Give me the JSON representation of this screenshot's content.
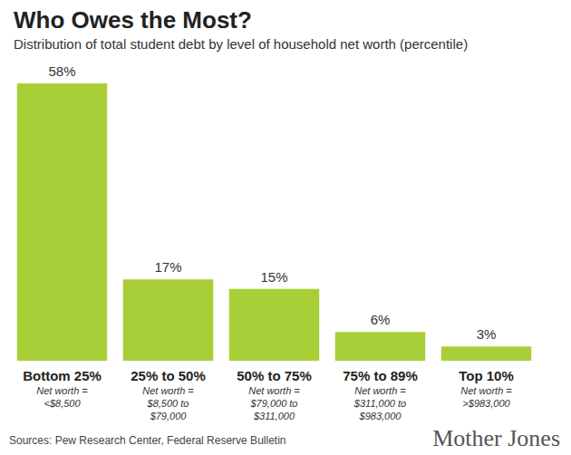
{
  "chart_data": {
    "type": "bar",
    "title": "Who Owes the Most?",
    "subtitle": "Distribution of total student debt by level of household net worth (percentile)",
    "categories": [
      "Bottom 25%",
      "25% to 50%",
      "50% to 75%",
      "75% to 89%",
      "Top 10%"
    ],
    "category_notes": [
      [
        "Net worth =",
        "<$8,500"
      ],
      [
        "Net worth =",
        "$8,500 to",
        "$79,000"
      ],
      [
        "Net worth =",
        "$79,000 to",
        "$311,000"
      ],
      [
        "Net worth =",
        "$311,000 to",
        "$983,000"
      ],
      [
        "Net worth =",
        ">$983,000"
      ]
    ],
    "values": [
      58,
      17,
      15,
      6,
      3
    ],
    "value_labels": [
      "58%",
      "17%",
      "15%",
      "6%",
      "3%"
    ],
    "color": "#a8cf38",
    "ylim": [
      0,
      58
    ],
    "data_labels": true,
    "tick_labels": "x",
    "grid": false,
    "source": "Sources: Pew Research Center, Federal Reserve Bulletin",
    "credit": "Mother Jones"
  }
}
